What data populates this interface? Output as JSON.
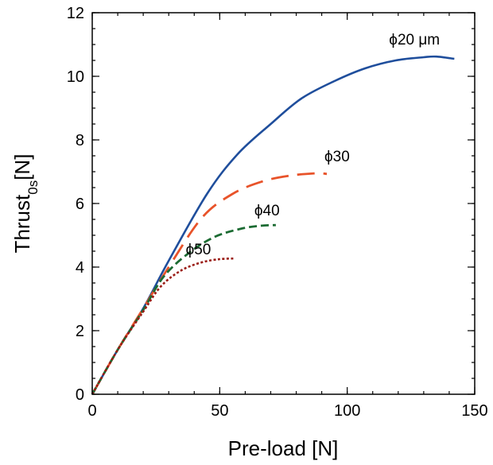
{
  "chart_data": {
    "type": "line",
    "xlabel": "Pre-load [N]",
    "ylabel": {
      "main": "Thrust",
      "subscript": "0s",
      "unit": "[N]"
    },
    "xlim": [
      0,
      150
    ],
    "ylim": [
      0,
      12
    ],
    "x_ticks": [
      0,
      50,
      100,
      150
    ],
    "y_ticks": [
      0,
      2,
      4,
      6,
      8,
      10,
      12
    ],
    "x_minor_step": 10,
    "y_minor_step": 0.5,
    "grid": false,
    "legend": "none",
    "series": [
      {
        "label": "ϕ20 μm",
        "color": "#1f4e9c",
        "style": "solid",
        "x": [
          0,
          10,
          20,
          30,
          45,
          57,
          70,
          82,
          95,
          107,
          119,
          130,
          135,
          142
        ],
        "y": [
          0,
          1.4,
          2.7,
          4.2,
          6.3,
          7.55,
          8.5,
          9.3,
          9.85,
          10.25,
          10.5,
          10.6,
          10.62,
          10.55
        ]
      },
      {
        "label": "ϕ30",
        "color": "#e8532a",
        "style": "long-dash",
        "x": [
          0,
          10,
          20,
          30,
          43,
          55,
          67,
          78,
          88,
          92
        ],
        "y": [
          0,
          1.4,
          2.7,
          4.0,
          5.55,
          6.3,
          6.7,
          6.88,
          6.95,
          6.93
        ]
      },
      {
        "label": "ϕ40",
        "color": "#1b6b32",
        "style": "dash",
        "x": [
          0,
          10,
          20,
          28,
          38,
          48,
          58,
          66,
          72
        ],
        "y": [
          0,
          1.4,
          2.65,
          3.7,
          4.45,
          4.95,
          5.2,
          5.3,
          5.32
        ]
      },
      {
        "label": "ϕ50",
        "color": "#9a1b14",
        "style": "dot",
        "x": [
          0,
          10,
          20,
          27,
          35,
          43,
          50,
          56
        ],
        "y": [
          0,
          1.4,
          2.6,
          3.4,
          3.9,
          4.15,
          4.25,
          4.27
        ]
      }
    ]
  }
}
